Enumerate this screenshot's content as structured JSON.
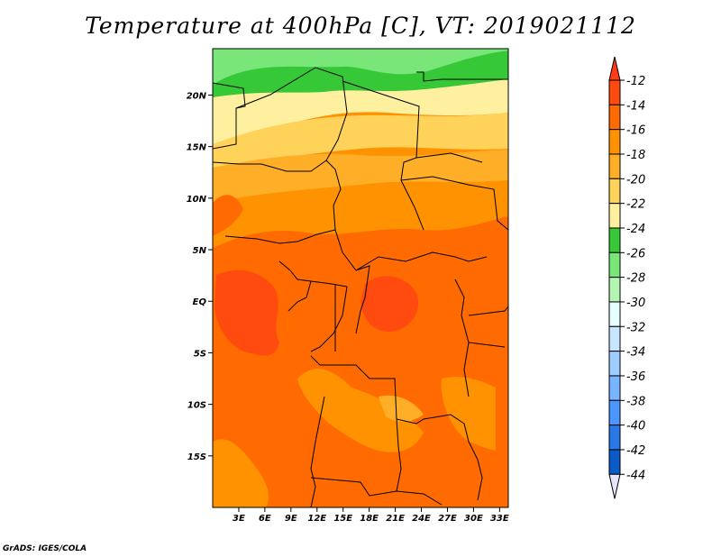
{
  "title": "Temperature at 400hPa [C], VT: 2019021112",
  "credit": "GrADS: IGES/COLA",
  "map": {
    "variable": "Temperature",
    "level": "400hPa",
    "units": "C",
    "valid_time": "2019021112",
    "lon_range": [
      0,
      34
    ],
    "lat_range": [
      -20,
      24.5
    ],
    "lat_ticks": [
      {
        "value": 20,
        "label": "20N"
      },
      {
        "value": 15,
        "label": "15N"
      },
      {
        "value": 10,
        "label": "10N"
      },
      {
        "value": 5,
        "label": "5N"
      },
      {
        "value": 0,
        "label": "EQ"
      },
      {
        "value": -5,
        "label": "5S"
      },
      {
        "value": -10,
        "label": "10S"
      },
      {
        "value": -15,
        "label": "15S"
      }
    ],
    "lon_ticks": [
      {
        "value": 3,
        "label": "3E"
      },
      {
        "value": 6,
        "label": "6E"
      },
      {
        "value": 9,
        "label": "9E"
      },
      {
        "value": 12,
        "label": "12E"
      },
      {
        "value": 15,
        "label": "15E"
      },
      {
        "value": 18,
        "label": "18E"
      },
      {
        "value": 21,
        "label": "21E"
      },
      {
        "value": 24,
        "label": "24E"
      },
      {
        "value": 27,
        "label": "27E"
      },
      {
        "value": 30,
        "label": "30E"
      },
      {
        "value": 33,
        "label": "33E"
      }
    ]
  },
  "colorbar": {
    "levels": [
      "-12",
      "-14",
      "-16",
      "-18",
      "-20",
      "-22",
      "-24",
      "-26",
      "-28",
      "-30",
      "-32",
      "-34",
      "-36",
      "-38",
      "-40",
      "-42",
      "-44"
    ],
    "colors": [
      "#ff4b10",
      "#ff6b00",
      "#ff9200",
      "#ffae28",
      "#ffd25a",
      "#fff0a0",
      "#37c837",
      "#78e678",
      "#b4f5b4",
      "#e6ffff",
      "#c8e6ff",
      "#a0cdff",
      "#78b4ff",
      "#4b96ff",
      "#2878e6",
      "#0a5ac8",
      "#0a1e78"
    ],
    "top_arrow_color": "#ff3c14",
    "bottom_arrow_color": "#e6e6ff"
  }
}
